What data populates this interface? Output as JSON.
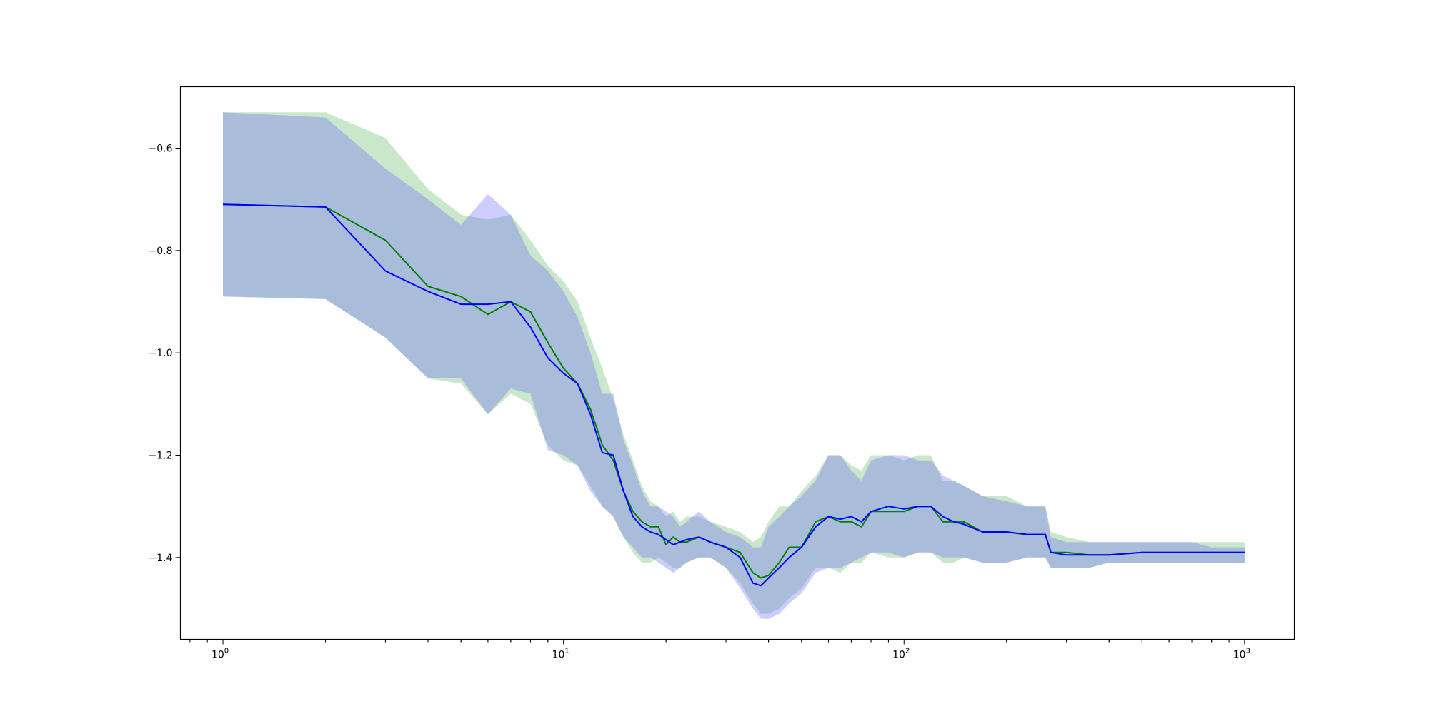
{
  "chart_data": {
    "type": "line",
    "title": "",
    "xlabel": "",
    "ylabel": "",
    "xscale": "log",
    "xlim": [
      0.75,
      1400
    ],
    "ylim": [
      -1.56,
      -0.48
    ],
    "grid": false,
    "x_major_ticks": [
      {
        "value": 1,
        "base": "10",
        "exp": "0"
      },
      {
        "value": 10,
        "base": "10",
        "exp": "1"
      },
      {
        "value": 100,
        "base": "10",
        "exp": "2"
      },
      {
        "value": 1000,
        "base": "10",
        "exp": "3"
      }
    ],
    "y_ticks": [
      {
        "value": -0.6,
        "label": "−0.6"
      },
      {
        "value": -0.8,
        "label": "−0.8"
      },
      {
        "value": -1.0,
        "label": "−1.0"
      },
      {
        "value": -1.2,
        "label": "−1.2"
      },
      {
        "value": -1.4,
        "label": "−1.4"
      }
    ],
    "series": [
      {
        "color": "#008000",
        "band_color": "#4caf50",
        "x": [
          1,
          2,
          3,
          4,
          5,
          6,
          7,
          8,
          9,
          10,
          11,
          12,
          13,
          14,
          15,
          16,
          17,
          18,
          19,
          20,
          21,
          22,
          23,
          25,
          27,
          30,
          33,
          36,
          38,
          40,
          43,
          46,
          50,
          55,
          60,
          65,
          70,
          75,
          80,
          90,
          100,
          110,
          120,
          130,
          140,
          150,
          170,
          200,
          230,
          260,
          270,
          300,
          350,
          400,
          500,
          600,
          700,
          800,
          900,
          1000
        ],
        "y": [
          -0.71,
          -0.715,
          -0.78,
          -0.87,
          -0.89,
          -0.925,
          -0.9,
          -0.92,
          -0.98,
          -1.03,
          -1.06,
          -1.11,
          -1.18,
          -1.21,
          -1.27,
          -1.31,
          -1.33,
          -1.34,
          -1.34,
          -1.375,
          -1.36,
          -1.37,
          -1.37,
          -1.36,
          -1.37,
          -1.38,
          -1.39,
          -1.43,
          -1.44,
          -1.435,
          -1.41,
          -1.38,
          -1.38,
          -1.33,
          -1.32,
          -1.33,
          -1.33,
          -1.34,
          -1.31,
          -1.31,
          -1.31,
          -1.3,
          -1.3,
          -1.33,
          -1.33,
          -1.33,
          -1.35,
          -1.35,
          -1.355,
          -1.355,
          -1.39,
          -1.39,
          -1.395,
          -1.395,
          -1.39,
          -1.39,
          -1.39,
          -1.39,
          -1.39,
          -1.39
        ],
        "lower": [
          -0.89,
          -0.895,
          -0.97,
          -1.05,
          -1.06,
          -1.12,
          -1.08,
          -1.1,
          -1.18,
          -1.21,
          -1.22,
          -1.26,
          -1.3,
          -1.32,
          -1.36,
          -1.39,
          -1.41,
          -1.41,
          -1.4,
          -1.41,
          -1.42,
          -1.42,
          -1.41,
          -1.4,
          -1.4,
          -1.42,
          -1.45,
          -1.49,
          -1.51,
          -1.51,
          -1.5,
          -1.48,
          -1.46,
          -1.42,
          -1.42,
          -1.43,
          -1.41,
          -1.41,
          -1.39,
          -1.4,
          -1.4,
          -1.39,
          -1.39,
          -1.41,
          -1.41,
          -1.4,
          -1.41,
          -1.41,
          -1.4,
          -1.4,
          -1.42,
          -1.42,
          -1.42,
          -1.41,
          -1.41,
          -1.41,
          -1.41,
          -1.41,
          -1.41,
          -1.41
        ],
        "upper": [
          -0.53,
          -0.53,
          -0.58,
          -0.68,
          -0.73,
          -0.74,
          -0.73,
          -0.78,
          -0.83,
          -0.86,
          -0.9,
          -0.97,
          -1.03,
          -1.09,
          -1.16,
          -1.21,
          -1.26,
          -1.29,
          -1.3,
          -1.32,
          -1.31,
          -1.33,
          -1.32,
          -1.32,
          -1.33,
          -1.34,
          -1.35,
          -1.37,
          -1.36,
          -1.33,
          -1.3,
          -1.3,
          -1.27,
          -1.24,
          -1.2,
          -1.2,
          -1.22,
          -1.23,
          -1.2,
          -1.2,
          -1.21,
          -1.2,
          -1.2,
          -1.25,
          -1.25,
          -1.26,
          -1.28,
          -1.28,
          -1.3,
          -1.3,
          -1.35,
          -1.36,
          -1.37,
          -1.37,
          -1.37,
          -1.37,
          -1.37,
          -1.37,
          -1.37,
          -1.37
        ]
      },
      {
        "color": "#0000ff",
        "band_color": "#6666ff",
        "x": [
          1,
          2,
          3,
          4,
          5,
          6,
          7,
          8,
          9,
          10,
          11,
          12,
          13,
          14,
          15,
          16,
          17,
          18,
          19,
          20,
          21,
          22,
          23,
          25,
          27,
          30,
          33,
          36,
          38,
          40,
          43,
          46,
          50,
          55,
          60,
          65,
          70,
          75,
          80,
          90,
          100,
          110,
          120,
          130,
          140,
          150,
          170,
          200,
          230,
          260,
          270,
          300,
          350,
          400,
          500,
          600,
          700,
          800,
          900,
          1000
        ],
        "y": [
          -0.71,
          -0.715,
          -0.84,
          -0.88,
          -0.905,
          -0.905,
          -0.9,
          -0.95,
          -1.01,
          -1.04,
          -1.06,
          -1.12,
          -1.195,
          -1.2,
          -1.27,
          -1.32,
          -1.34,
          -1.35,
          -1.355,
          -1.365,
          -1.375,
          -1.37,
          -1.365,
          -1.36,
          -1.37,
          -1.38,
          -1.4,
          -1.45,
          -1.455,
          -1.44,
          -1.42,
          -1.4,
          -1.38,
          -1.34,
          -1.32,
          -1.325,
          -1.32,
          -1.33,
          -1.31,
          -1.3,
          -1.305,
          -1.3,
          -1.3,
          -1.32,
          -1.33,
          -1.335,
          -1.35,
          -1.35,
          -1.355,
          -1.355,
          -1.39,
          -1.395,
          -1.395,
          -1.395,
          -1.39,
          -1.39,
          -1.39,
          -1.39,
          -1.39,
          -1.39
        ],
        "lower": [
          -0.89,
          -0.895,
          -0.97,
          -1.05,
          -1.05,
          -1.12,
          -1.07,
          -1.08,
          -1.19,
          -1.2,
          -1.22,
          -1.27,
          -1.3,
          -1.32,
          -1.36,
          -1.38,
          -1.4,
          -1.4,
          -1.41,
          -1.42,
          -1.43,
          -1.42,
          -1.41,
          -1.4,
          -1.4,
          -1.42,
          -1.46,
          -1.5,
          -1.52,
          -1.52,
          -1.51,
          -1.49,
          -1.47,
          -1.43,
          -1.42,
          -1.42,
          -1.41,
          -1.4,
          -1.39,
          -1.39,
          -1.4,
          -1.39,
          -1.39,
          -1.4,
          -1.4,
          -1.4,
          -1.41,
          -1.41,
          -1.4,
          -1.4,
          -1.42,
          -1.42,
          -1.42,
          -1.41,
          -1.41,
          -1.41,
          -1.41,
          -1.41,
          -1.41,
          -1.41
        ],
        "upper": [
          -0.53,
          -0.54,
          -0.64,
          -0.7,
          -0.75,
          -0.69,
          -0.73,
          -0.81,
          -0.84,
          -0.88,
          -0.93,
          -1.0,
          -1.08,
          -1.08,
          -1.17,
          -1.22,
          -1.27,
          -1.3,
          -1.3,
          -1.31,
          -1.32,
          -1.34,
          -1.33,
          -1.31,
          -1.33,
          -1.35,
          -1.36,
          -1.38,
          -1.38,
          -1.34,
          -1.32,
          -1.3,
          -1.28,
          -1.25,
          -1.2,
          -1.2,
          -1.23,
          -1.25,
          -1.21,
          -1.2,
          -1.2,
          -1.21,
          -1.21,
          -1.24,
          -1.25,
          -1.26,
          -1.28,
          -1.29,
          -1.3,
          -1.3,
          -1.36,
          -1.37,
          -1.37,
          -1.37,
          -1.37,
          -1.37,
          -1.37,
          -1.38,
          -1.38,
          -1.38
        ]
      }
    ]
  }
}
